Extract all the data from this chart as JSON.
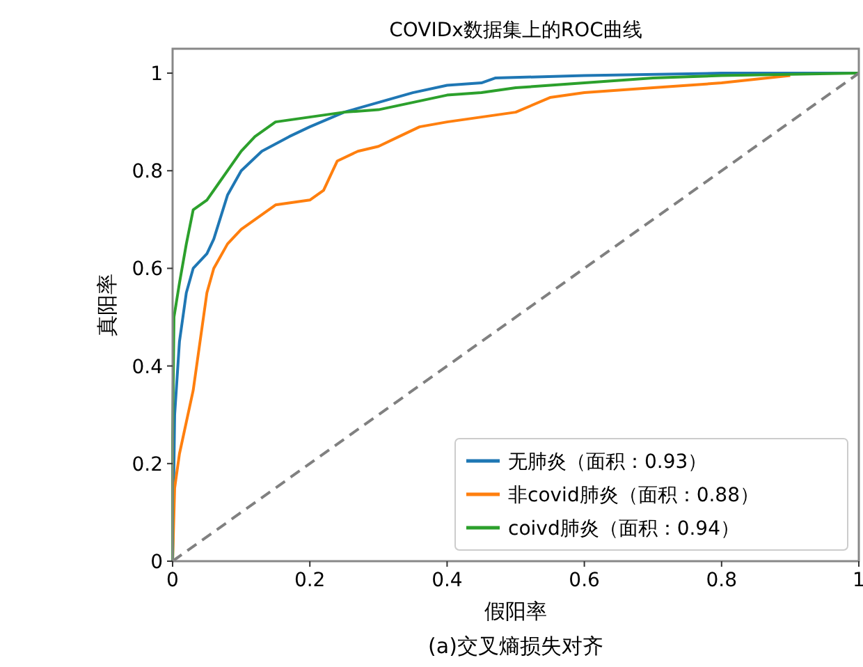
{
  "chart_data": {
    "type": "line",
    "title": "COVIDx数据集上的ROC曲线",
    "xlabel": "假阳率",
    "ylabel": "真阳率",
    "annotations": [
      "(a)交叉熵损失对齐"
    ],
    "xlim": [
      0,
      1
    ],
    "ylim": [
      0,
      1.05
    ],
    "xticks": [
      0,
      0.2,
      0.4,
      0.6,
      0.8,
      1
    ],
    "yticks": [
      0,
      0.2,
      0.4,
      0.6,
      0.8,
      1.0
    ],
    "legend": "bottom right",
    "grid": false,
    "series": [
      {
        "name": "无肺炎（面积：0.93）",
        "color": "#1f77b4",
        "x": [
          0,
          0.003,
          0.01,
          0.02,
          0.03,
          0.05,
          0.06,
          0.08,
          0.1,
          0.13,
          0.17,
          0.2,
          0.25,
          0.3,
          0.35,
          0.4,
          0.45,
          0.47,
          0.6,
          0.8,
          1
        ],
        "values": [
          0,
          0.3,
          0.45,
          0.55,
          0.6,
          0.63,
          0.66,
          0.75,
          0.8,
          0.84,
          0.87,
          0.89,
          0.92,
          0.94,
          0.96,
          0.975,
          0.98,
          0.99,
          0.995,
          1,
          1
        ]
      },
      {
        "name": "非covid肺炎（面积：0.88）",
        "color": "#ff7f0e",
        "x": [
          0,
          0.003,
          0.01,
          0.03,
          0.04,
          0.05,
          0.06,
          0.08,
          0.1,
          0.13,
          0.15,
          0.2,
          0.22,
          0.24,
          0.27,
          0.3,
          0.33,
          0.36,
          0.4,
          0.5,
          0.55,
          0.6,
          0.7,
          0.8,
          0.9
        ],
        "values": [
          0,
          0.15,
          0.22,
          0.35,
          0.45,
          0.55,
          0.6,
          0.65,
          0.68,
          0.71,
          0.73,
          0.74,
          0.76,
          0.82,
          0.84,
          0.85,
          0.87,
          0.89,
          0.9,
          0.92,
          0.95,
          0.96,
          0.97,
          0.98,
          0.995
        ]
      },
      {
        "name": "coivd肺炎（面积：0.94）",
        "color": "#2ca02c",
        "x": [
          0,
          0,
          0.002,
          0.01,
          0.02,
          0.03,
          0.05,
          0.07,
          0.1,
          0.12,
          0.15,
          0.2,
          0.25,
          0.3,
          0.35,
          0.4,
          0.45,
          0.5,
          0.55,
          0.6,
          0.7,
          0.8,
          1
        ],
        "values": [
          0,
          0.25,
          0.5,
          0.57,
          0.65,
          0.72,
          0.74,
          0.78,
          0.84,
          0.87,
          0.9,
          0.91,
          0.92,
          0.925,
          0.94,
          0.955,
          0.96,
          0.97,
          0.975,
          0.98,
          0.99,
          0.995,
          1
        ]
      },
      {
        "color": "#808080",
        "line_style": "dashed",
        "x": [
          0,
          1
        ],
        "values": [
          0,
          1
        ]
      }
    ]
  }
}
